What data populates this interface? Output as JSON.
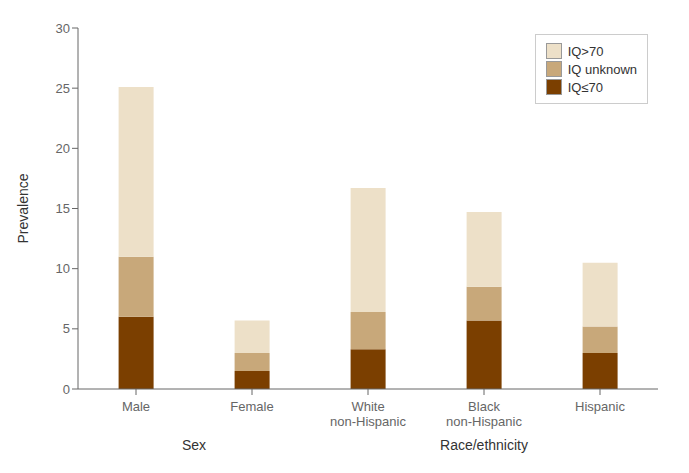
{
  "chart_data": {
    "type": "bar",
    "stacked": true,
    "ylabel": "Prevalence",
    "categories": [
      "Male",
      "Female",
      "White\nnon-Hispanic",
      "Black\nnon-Hispanic",
      "Hispanic"
    ],
    "series": [
      {
        "name": "IQ≤70",
        "color": "#7B3F00",
        "values": [
          6.0,
          1.5,
          3.3,
          5.7,
          3.0
        ]
      },
      {
        "name": "IQ unknown",
        "color": "#C8A87A",
        "values": [
          5.0,
          1.5,
          3.1,
          2.8,
          2.2
        ]
      },
      {
        "name": "IQ>70",
        "color": "#EDE0C8",
        "values": [
          14.1,
          2.7,
          10.3,
          6.2,
          5.3
        ]
      }
    ],
    "ylim": [
      0,
      30
    ],
    "yticks": [
      0,
      5,
      10,
      15,
      20,
      25,
      30
    ],
    "grid": false,
    "legend": "upper right",
    "annotations": [
      {
        "text": "Sex",
        "from": 0,
        "to": 1
      },
      {
        "text": "Race/ethnicity",
        "from": 2,
        "to": 4
      }
    ]
  }
}
